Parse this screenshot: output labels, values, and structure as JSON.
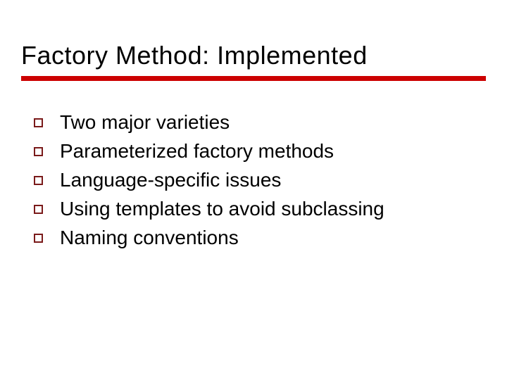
{
  "slide": {
    "title": "Factory Method: Implemented",
    "title_fontsize": 36,
    "title_color": "#000000",
    "underline_color": "#cc0000",
    "underline_height": 7,
    "background_color": "#ffffff",
    "bullets": {
      "marker_type": "hollow-square",
      "marker_border_color": "#7a1a1a",
      "marker_size": 13,
      "text_fontsize": 28,
      "text_color": "#000000",
      "items": [
        "Two major varieties",
        "Parameterized factory methods",
        "Language-specific issues",
        "Using templates to avoid subclassing",
        "Naming conventions"
      ]
    }
  }
}
